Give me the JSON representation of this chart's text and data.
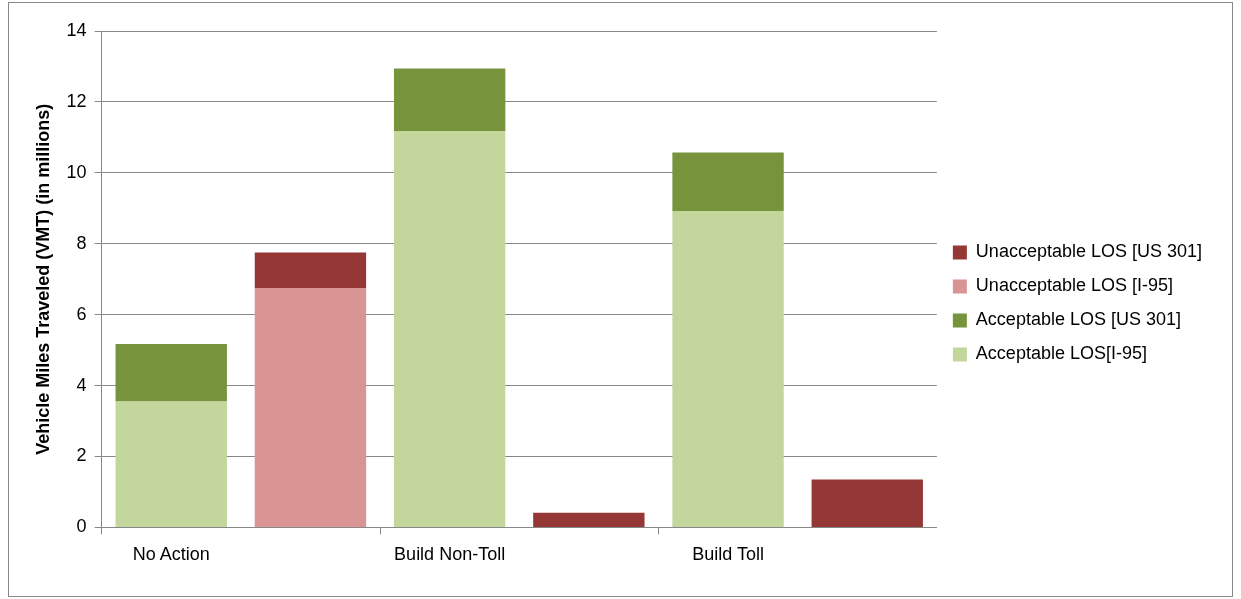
{
  "chart_data": {
    "type": "bar",
    "stacked": true,
    "ylabel": "Vehicle Miles Traveled (VMT) (in millions)",
    "categories": [
      "No Action",
      null,
      "Build Non-Toll",
      null,
      "Build Toll",
      null
    ],
    "series": [
      {
        "name": "Acceptable LOS[I-95]",
        "color": "#c3d69b",
        "values": [
          3.55,
          null,
          11.18,
          null,
          8.92,
          null
        ]
      },
      {
        "name": "Acceptable LOS [US 301]",
        "color": "#77933c",
        "values": [
          1.62,
          null,
          1.76,
          null,
          1.65,
          null
        ]
      },
      {
        "name": "Unacceptable LOS [I-95]",
        "color": "#d99594",
        "values": [
          null,
          6.75,
          null,
          null,
          null,
          null
        ]
      },
      {
        "name": "Unacceptable LOS [US 301]",
        "color": "#953735",
        "values": [
          null,
          1.0,
          null,
          0.41,
          null,
          1.35
        ]
      }
    ],
    "ylim": [
      0,
      14
    ],
    "yticks": [
      0,
      2,
      4,
      6,
      8,
      10,
      12,
      14
    ],
    "grid": "y",
    "legend": "right"
  }
}
